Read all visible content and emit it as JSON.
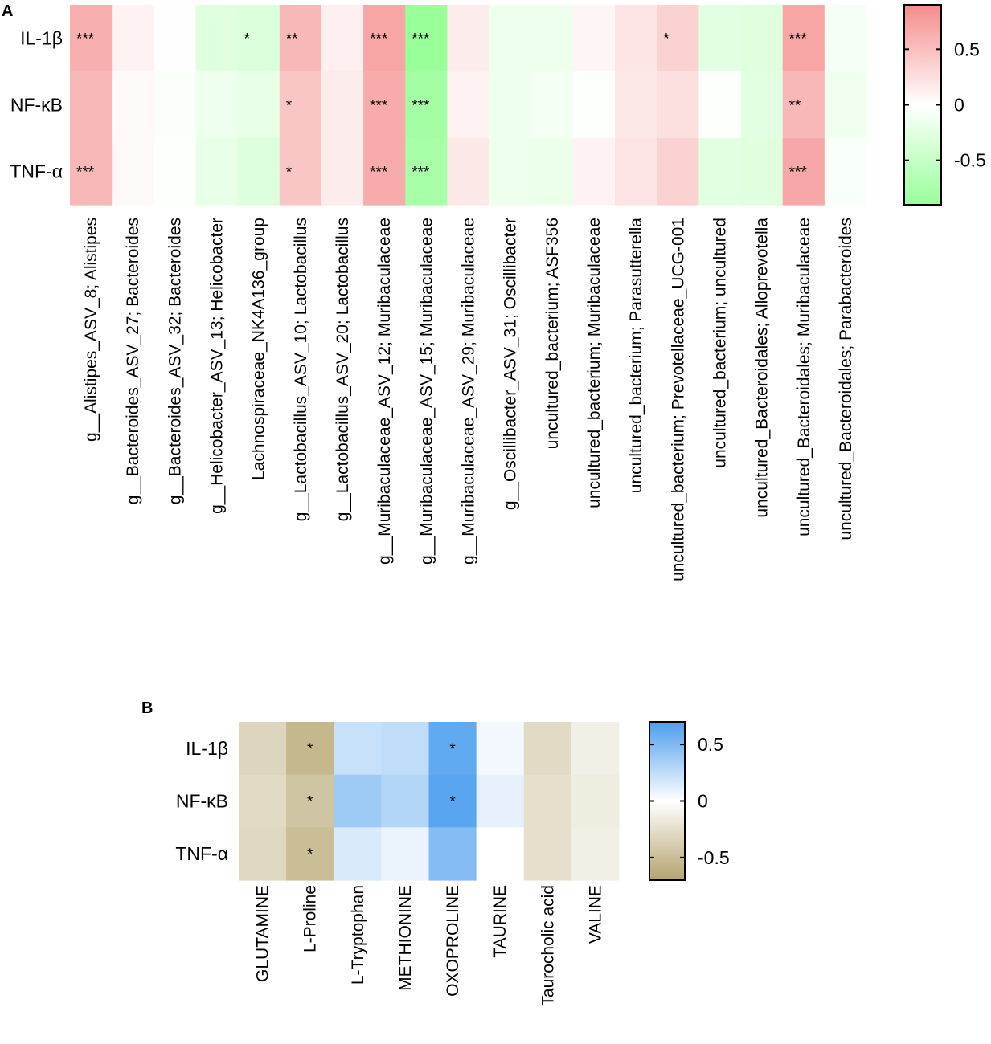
{
  "chart_data": [
    {
      "panel": "A",
      "type": "heatmap",
      "rows": [
        "IL-1β",
        "NF-κB",
        "TNF-α"
      ],
      "columns": [
        "g__Alistipes_ASV_8; Alistipes",
        "g__Bacteroides_ASV_27; Bacteroides",
        "g__Bacteroides_ASV_32; Bacteroides",
        "g__Helicobacter_ASV_13; Helicobacter",
        "Lachnospiraceae_NK4A136_group",
        "g__Lactobacillus_ASV_10; Lactobacillus",
        "g__Lactobacillus_ASV_20; Lactobacillus",
        "g__Muribaculaceae_ASV_12; Muribaculaceae",
        "g__Muribaculaceae_ASV_15; Muribaculaceae",
        "g__Muribaculaceae_ASV_29; Muribaculaceae",
        "g__Oscillibacter_ASV_31; Oscillibacter",
        "uncultured_bacterium; ASF356",
        "uncultured_bacterium; Muribaculaceae",
        "uncultured_bacterium; Parasutterella",
        "uncultured_bacterium; Prevotellaceae_UCG-001",
        "uncultured_bacterium; uncultured",
        "uncultured_Bacteroidales; Alloprevotella",
        "uncultured_Bacteroidales; Muribaculaceae",
        "uncultured_Bacteroidales; Parabacteroides"
      ],
      "values": [
        [
          0.62,
          0.1,
          0.01,
          -0.28,
          -0.33,
          0.55,
          0.12,
          0.7,
          -0.92,
          0.15,
          -0.15,
          -0.15,
          0.08,
          0.2,
          0.35,
          -0.25,
          -0.28,
          0.7,
          -0.08
        ],
        [
          0.55,
          0.04,
          -0.04,
          -0.15,
          -0.22,
          0.45,
          0.15,
          0.65,
          -0.8,
          0.1,
          -0.15,
          -0.1,
          -0.02,
          0.18,
          0.25,
          -0.03,
          -0.25,
          0.55,
          -0.12
        ],
        [
          0.55,
          0.05,
          -0.03,
          -0.2,
          -0.3,
          0.45,
          0.15,
          0.65,
          -0.78,
          0.18,
          -0.15,
          -0.18,
          0.1,
          0.22,
          0.35,
          -0.25,
          -0.28,
          0.68,
          -0.05
        ]
      ],
      "significance": [
        [
          "***",
          "",
          "",
          "",
          "*",
          "**",
          "",
          "***",
          "***",
          "",
          "",
          "",
          "",
          "",
          "*",
          "",
          "",
          "***",
          ""
        ],
        [
          "",
          "",
          "",
          "",
          "",
          "*",
          "",
          "***",
          "***",
          "",
          "",
          "",
          "",
          "",
          "",
          "",
          "",
          "**",
          ""
        ],
        [
          "***",
          "",
          "",
          "",
          "",
          "*",
          "",
          "***",
          "***",
          "",
          "",
          "",
          "",
          "",
          "",
          "",
          "",
          "***",
          ""
        ]
      ],
      "color_range": [
        -0.9,
        0.9
      ],
      "colorbar_ticks": [
        0.5,
        0,
        -0.5
      ],
      "colorbar_tick_labels": [
        "0.5",
        "0",
        "-0.5"
      ],
      "colors": {
        "low": "#99ff99",
        "mid": "#ffffff",
        "high": "#f58b8b"
      }
    },
    {
      "panel": "B",
      "type": "heatmap",
      "rows": [
        "IL-1β",
        "NF-κB",
        "TNF-α"
      ],
      "columns": [
        "GLUTAMINE",
        "L-Proline",
        "L-Tryptophan",
        "METHIONINE",
        "OXOPROLINE",
        "TAURINE",
        "Taurocholic acid",
        "VALINE"
      ],
      "values": [
        [
          -0.32,
          -0.55,
          0.22,
          0.25,
          0.62,
          0.05,
          -0.28,
          -0.12
        ],
        [
          -0.28,
          -0.45,
          0.38,
          0.3,
          0.65,
          0.1,
          -0.25,
          -0.15
        ],
        [
          -0.3,
          -0.5,
          0.15,
          0.08,
          0.48,
          0.0,
          -0.25,
          -0.12
        ]
      ],
      "significance": [
        [
          "",
          "*",
          "",
          "",
          "*",
          "",
          "",
          ""
        ],
        [
          "",
          "*",
          "",
          "",
          "*",
          "",
          "",
          ""
        ],
        [
          "",
          "*",
          "",
          "",
          "",
          "",
          "",
          ""
        ]
      ],
      "color_range": [
        -0.7,
        0.7
      ],
      "colorbar_ticks": [
        0.5,
        0,
        -0.5
      ],
      "colorbar_tick_labels": [
        "0.5",
        "0",
        "-0.5"
      ],
      "colors": {
        "low": "#b5a46e",
        "mid": "#ffffff",
        "high": "#4d9eee"
      }
    }
  ]
}
